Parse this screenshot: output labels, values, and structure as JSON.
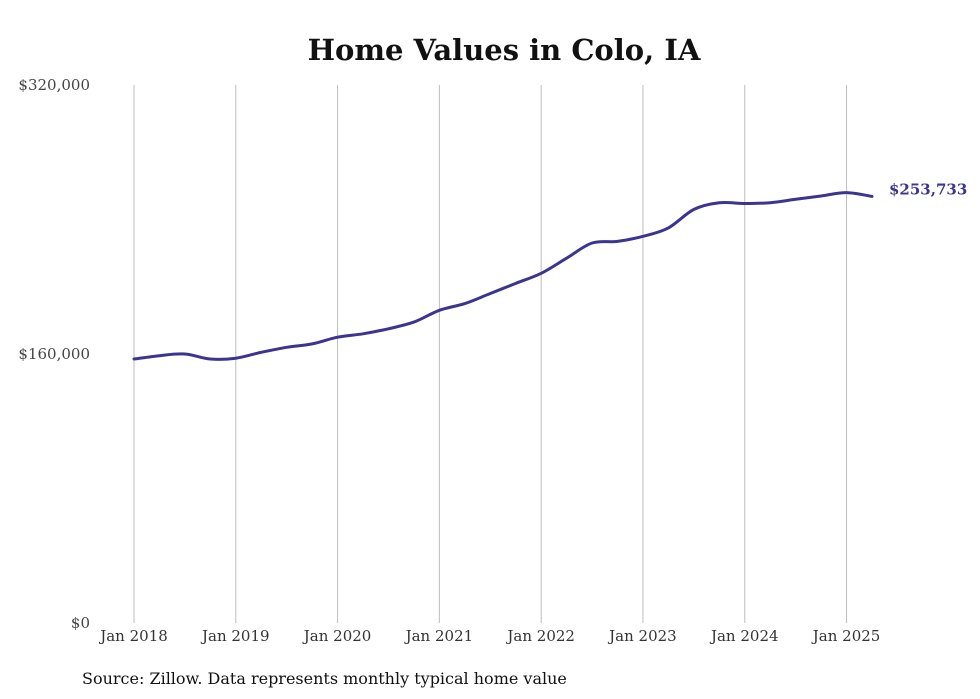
{
  "chart_data": {
    "type": "line",
    "title": "Home Values in Colo, IA",
    "xlabel": "",
    "ylabel": "",
    "ylim": [
      0,
      320000
    ],
    "yticks": [
      0,
      160000,
      320000
    ],
    "ytick_labels": [
      "$0",
      "$160,000",
      "$320,000"
    ],
    "xticks": [
      "2018-01",
      "2019-01",
      "2020-01",
      "2021-01",
      "2022-01",
      "2023-01",
      "2024-01",
      "2025-01"
    ],
    "xtick_labels": [
      "Jan 2018",
      "Jan 2019",
      "Jan 2020",
      "Jan 2021",
      "Jan 2022",
      "Jan 2023",
      "Jan 2024",
      "Jan 2025"
    ],
    "xlim": [
      "2018-01",
      "2025-04"
    ],
    "grid": "vertical",
    "end_label": "$253,733",
    "series": [
      {
        "color": "#3b3590",
        "points": [
          {
            "x": "2018-01",
            "y": 157000
          },
          {
            "x": "2018-04",
            "y": 159000
          },
          {
            "x": "2018-07",
            "y": 160000
          },
          {
            "x": "2018-10",
            "y": 157000
          },
          {
            "x": "2019-01",
            "y": 157500
          },
          {
            "x": "2019-04",
            "y": 161000
          },
          {
            "x": "2019-07",
            "y": 164000
          },
          {
            "x": "2019-10",
            "y": 166000
          },
          {
            "x": "2020-01",
            "y": 170000
          },
          {
            "x": "2020-04",
            "y": 172000
          },
          {
            "x": "2020-07",
            "y": 175000
          },
          {
            "x": "2020-10",
            "y": 179000
          },
          {
            "x": "2021-01",
            "y": 186000
          },
          {
            "x": "2021-04",
            "y": 190000
          },
          {
            "x": "2021-07",
            "y": 196000
          },
          {
            "x": "2021-10",
            "y": 202000
          },
          {
            "x": "2022-01",
            "y": 208000
          },
          {
            "x": "2022-04",
            "y": 217000
          },
          {
            "x": "2022-07",
            "y": 226000
          },
          {
            "x": "2022-10",
            "y": 227000
          },
          {
            "x": "2023-01",
            "y": 230000
          },
          {
            "x": "2023-04",
            "y": 235000
          },
          {
            "x": "2023-07",
            "y": 246000
          },
          {
            "x": "2023-10",
            "y": 250000
          },
          {
            "x": "2024-01",
            "y": 249500
          },
          {
            "x": "2024-04",
            "y": 250000
          },
          {
            "x": "2024-07",
            "y": 252000
          },
          {
            "x": "2024-10",
            "y": 254000
          },
          {
            "x": "2025-01",
            "y": 256000
          },
          {
            "x": "2025-04",
            "y": 253733
          }
        ]
      }
    ]
  },
  "source": "Source: Zillow. Data represents monthly typical home value"
}
